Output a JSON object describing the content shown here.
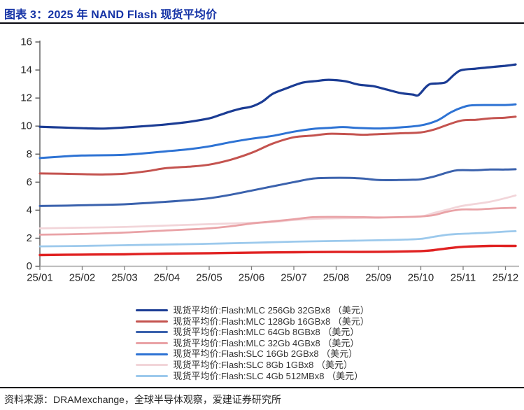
{
  "header": {
    "title": "图表 3：2025 年 NAND Flash 现货平均价"
  },
  "footer": {
    "source": "资料来源：DRAMexchange，全球半导体观察，爱建证券研究所"
  },
  "colors": {
    "title_blue": "#1533a6",
    "rule_dark": "#07070f",
    "axis_text": "#262626",
    "legend_text": "#333333",
    "y_axis_line": "#595959",
    "x_axis_line": "#a6a6a6",
    "background": "#ffffff"
  },
  "chart_data": {
    "type": "line",
    "title": "2025 年 NAND Flash 现货平均价",
    "xlabel": "",
    "ylabel": "",
    "grid": false,
    "legend_position": "bottom",
    "x_axis": {
      "labels": [
        "25/01",
        "25/02",
        "25/03",
        "25/04",
        "25/05",
        "25/06",
        "25/07",
        "25/08",
        "25/09",
        "25/10",
        "25/11",
        "25/12"
      ]
    },
    "y_axis": {
      "min": 0,
      "max": 16,
      "tick_step": 2,
      "ticks": [
        0,
        2,
        4,
        6,
        8,
        10,
        12,
        14,
        16
      ]
    },
    "series": [
      {
        "name": "现货平均价:Flash:MLC 256Gb 32GBx8 （美元）",
        "color": "#1b3c94",
        "width": 3.2,
        "in_legend": true,
        "points": [
          [
            1,
            9.95
          ],
          [
            1.5,
            9.9
          ],
          [
            1.99,
            9.85
          ],
          [
            2.5,
            9.82
          ],
          [
            3,
            9.9
          ],
          [
            3.5,
            10
          ],
          [
            3.99,
            10.12
          ],
          [
            4.52,
            10.3
          ],
          [
            5,
            10.55
          ],
          [
            5.26,
            10.8
          ],
          [
            5.51,
            11.05
          ],
          [
            5.76,
            11.25
          ],
          [
            6.01,
            11.4
          ],
          [
            6.26,
            11.75
          ],
          [
            6.5,
            12.3
          ],
          [
            6.83,
            12.7
          ],
          [
            7.21,
            13.1
          ],
          [
            7.55,
            13.22
          ],
          [
            7.83,
            13.3
          ],
          [
            8.21,
            13.2
          ],
          [
            8.54,
            12.95
          ],
          [
            8.87,
            12.85
          ],
          [
            9.2,
            12.6
          ],
          [
            9.53,
            12.35
          ],
          [
            9.81,
            12.25
          ],
          [
            9.94,
            12.2
          ],
          [
            10.11,
            12.75
          ],
          [
            10.22,
            13
          ],
          [
            10.44,
            13.05
          ],
          [
            10.6,
            13.15
          ],
          [
            10.8,
            13.7
          ],
          [
            10.97,
            14
          ],
          [
            11.3,
            14.1
          ],
          [
            11.63,
            14.2
          ],
          [
            11.99,
            14.3
          ],
          [
            12.24,
            14.4
          ]
        ]
      },
      {
        "name": "现货平均价:Flash:MLC 128Gb 16GBx8 （美元）",
        "color": "#c4534f",
        "width": 3,
        "in_legend": true,
        "points": [
          [
            1,
            6.62
          ],
          [
            1.5,
            6.6
          ],
          [
            1.99,
            6.57
          ],
          [
            2.54,
            6.55
          ],
          [
            3,
            6.6
          ],
          [
            3.53,
            6.78
          ],
          [
            3.99,
            7
          ],
          [
            4.52,
            7.1
          ],
          [
            5,
            7.25
          ],
          [
            5.51,
            7.6
          ],
          [
            6.01,
            8.1
          ],
          [
            6.5,
            8.75
          ],
          [
            7,
            9.2
          ],
          [
            7.45,
            9.32
          ],
          [
            7.83,
            9.45
          ],
          [
            8.32,
            9.42
          ],
          [
            8.65,
            9.38
          ],
          [
            9,
            9.42
          ],
          [
            9.48,
            9.48
          ],
          [
            10,
            9.55
          ],
          [
            10.31,
            9.75
          ],
          [
            10.64,
            10.1
          ],
          [
            10.97,
            10.4
          ],
          [
            11.3,
            10.45
          ],
          [
            11.63,
            10.55
          ],
          [
            11.99,
            10.6
          ],
          [
            12.24,
            10.67
          ]
        ]
      },
      {
        "name": "现货平均价:Flash:MLC 64Gb 8GBx8 （美元）",
        "color": "#3b62ad",
        "width": 3,
        "in_legend": true,
        "points": [
          [
            1,
            4.3
          ],
          [
            1.5,
            4.32
          ],
          [
            1.99,
            4.35
          ],
          [
            3,
            4.42
          ],
          [
            3.99,
            4.6
          ],
          [
            4.52,
            4.72
          ],
          [
            5,
            4.85
          ],
          [
            5.51,
            5.1
          ],
          [
            6.01,
            5.4
          ],
          [
            6.5,
            5.7
          ],
          [
            7,
            6
          ],
          [
            7.45,
            6.25
          ],
          [
            7.83,
            6.3
          ],
          [
            8.32,
            6.3
          ],
          [
            8.65,
            6.25
          ],
          [
            9,
            6.15
          ],
          [
            9.48,
            6.15
          ],
          [
            9.81,
            6.17
          ],
          [
            10,
            6.2
          ],
          [
            10.31,
            6.4
          ],
          [
            10.64,
            6.7
          ],
          [
            10.88,
            6.85
          ],
          [
            11.3,
            6.85
          ],
          [
            11.63,
            6.9
          ],
          [
            11.99,
            6.9
          ],
          [
            12.24,
            6.92
          ]
        ]
      },
      {
        "name": "现货平均价:Flash:MLC 32Gb 4GBx8 （美元）",
        "color": "#e9a2a6",
        "width": 2.8,
        "in_legend": true,
        "points": [
          [
            1,
            2.25
          ],
          [
            1.99,
            2.3
          ],
          [
            3,
            2.4
          ],
          [
            3.99,
            2.55
          ],
          [
            5,
            2.7
          ],
          [
            5.51,
            2.85
          ],
          [
            6.01,
            3.05
          ],
          [
            6.5,
            3.2
          ],
          [
            7,
            3.35
          ],
          [
            7.45,
            3.5
          ],
          [
            7.99,
            3.52
          ],
          [
            8.65,
            3.5
          ],
          [
            9,
            3.48
          ],
          [
            9.48,
            3.5
          ],
          [
            10,
            3.55
          ],
          [
            10.31,
            3.65
          ],
          [
            10.64,
            3.9
          ],
          [
            10.97,
            4.05
          ],
          [
            11.3,
            4.05
          ],
          [
            11.63,
            4.1
          ],
          [
            11.99,
            4.15
          ],
          [
            12.24,
            4.17
          ]
        ]
      },
      {
        "name": "现货平均价:Flash:SLC 16Gb 2GBx8 （美元）",
        "color": "#2e73d4",
        "width": 3,
        "in_legend": true,
        "points": [
          [
            1,
            7.72
          ],
          [
            1.5,
            7.82
          ],
          [
            1.99,
            7.9
          ],
          [
            3,
            7.95
          ],
          [
            3.99,
            8.2
          ],
          [
            4.52,
            8.35
          ],
          [
            5,
            8.55
          ],
          [
            5.51,
            8.85
          ],
          [
            6.01,
            9.1
          ],
          [
            6.5,
            9.3
          ],
          [
            7,
            9.6
          ],
          [
            7.45,
            9.8
          ],
          [
            7.83,
            9.87
          ],
          [
            8.16,
            9.93
          ],
          [
            8.49,
            9.87
          ],
          [
            9,
            9.83
          ],
          [
            9.48,
            9.9
          ],
          [
            10,
            10.05
          ],
          [
            10.39,
            10.4
          ],
          [
            10.72,
            11
          ],
          [
            11,
            11.35
          ],
          [
            11.21,
            11.48
          ],
          [
            11.63,
            11.5
          ],
          [
            11.99,
            11.5
          ],
          [
            12.24,
            11.55
          ]
        ]
      },
      {
        "name": "现货平均价:Flash:SLC 8Gb 1GBx8 （美元）",
        "color": "#f2d5d9",
        "width": 2.8,
        "in_legend": true,
        "points": [
          [
            1,
            2.7
          ],
          [
            1.99,
            2.75
          ],
          [
            3,
            2.8
          ],
          [
            3.99,
            2.9
          ],
          [
            5,
            3
          ],
          [
            5.51,
            3.05
          ],
          [
            6.01,
            3.1
          ],
          [
            6.5,
            3.15
          ],
          [
            7,
            3.3
          ],
          [
            7.45,
            3.38
          ],
          [
            7.99,
            3.42
          ],
          [
            8.65,
            3.45
          ],
          [
            9,
            3.45
          ],
          [
            9.48,
            3.5
          ],
          [
            10,
            3.55
          ],
          [
            10.31,
            3.8
          ],
          [
            10.64,
            4.05
          ],
          [
            10.97,
            4.3
          ],
          [
            11.3,
            4.45
          ],
          [
            11.63,
            4.6
          ],
          [
            11.99,
            4.85
          ],
          [
            12.24,
            5.05
          ]
        ]
      },
      {
        "name": "现货平均价:Flash:SLC 4Gb 512MBx8 （美元）",
        "color": "#9cc9ec",
        "width": 2.8,
        "in_legend": true,
        "points": [
          [
            1,
            1.42
          ],
          [
            1.99,
            1.45
          ],
          [
            3,
            1.5
          ],
          [
            3.99,
            1.55
          ],
          [
            5,
            1.6
          ],
          [
            6.01,
            1.67
          ],
          [
            7,
            1.75
          ],
          [
            7.99,
            1.8
          ],
          [
            9,
            1.85
          ],
          [
            9.64,
            1.9
          ],
          [
            10,
            1.95
          ],
          [
            10.31,
            2.1
          ],
          [
            10.64,
            2.25
          ],
          [
            10.88,
            2.3
          ],
          [
            11.3,
            2.35
          ],
          [
            11.63,
            2.4
          ],
          [
            11.99,
            2.47
          ],
          [
            12.24,
            2.5
          ]
        ]
      },
      {
        "name": "",
        "color": "#e02222",
        "width": 3.4,
        "in_legend": false,
        "points": [
          [
            1,
            0.8
          ],
          [
            1.99,
            0.83
          ],
          [
            3,
            0.85
          ],
          [
            3.99,
            0.9
          ],
          [
            5,
            0.93
          ],
          [
            6.01,
            0.97
          ],
          [
            7,
            1
          ],
          [
            7.99,
            1.02
          ],
          [
            9,
            1.03
          ],
          [
            10,
            1.08
          ],
          [
            10.31,
            1.15
          ],
          [
            10.64,
            1.28
          ],
          [
            10.97,
            1.38
          ],
          [
            11.3,
            1.42
          ],
          [
            11.63,
            1.45
          ],
          [
            11.99,
            1.45
          ],
          [
            12.24,
            1.45
          ]
        ]
      }
    ]
  }
}
